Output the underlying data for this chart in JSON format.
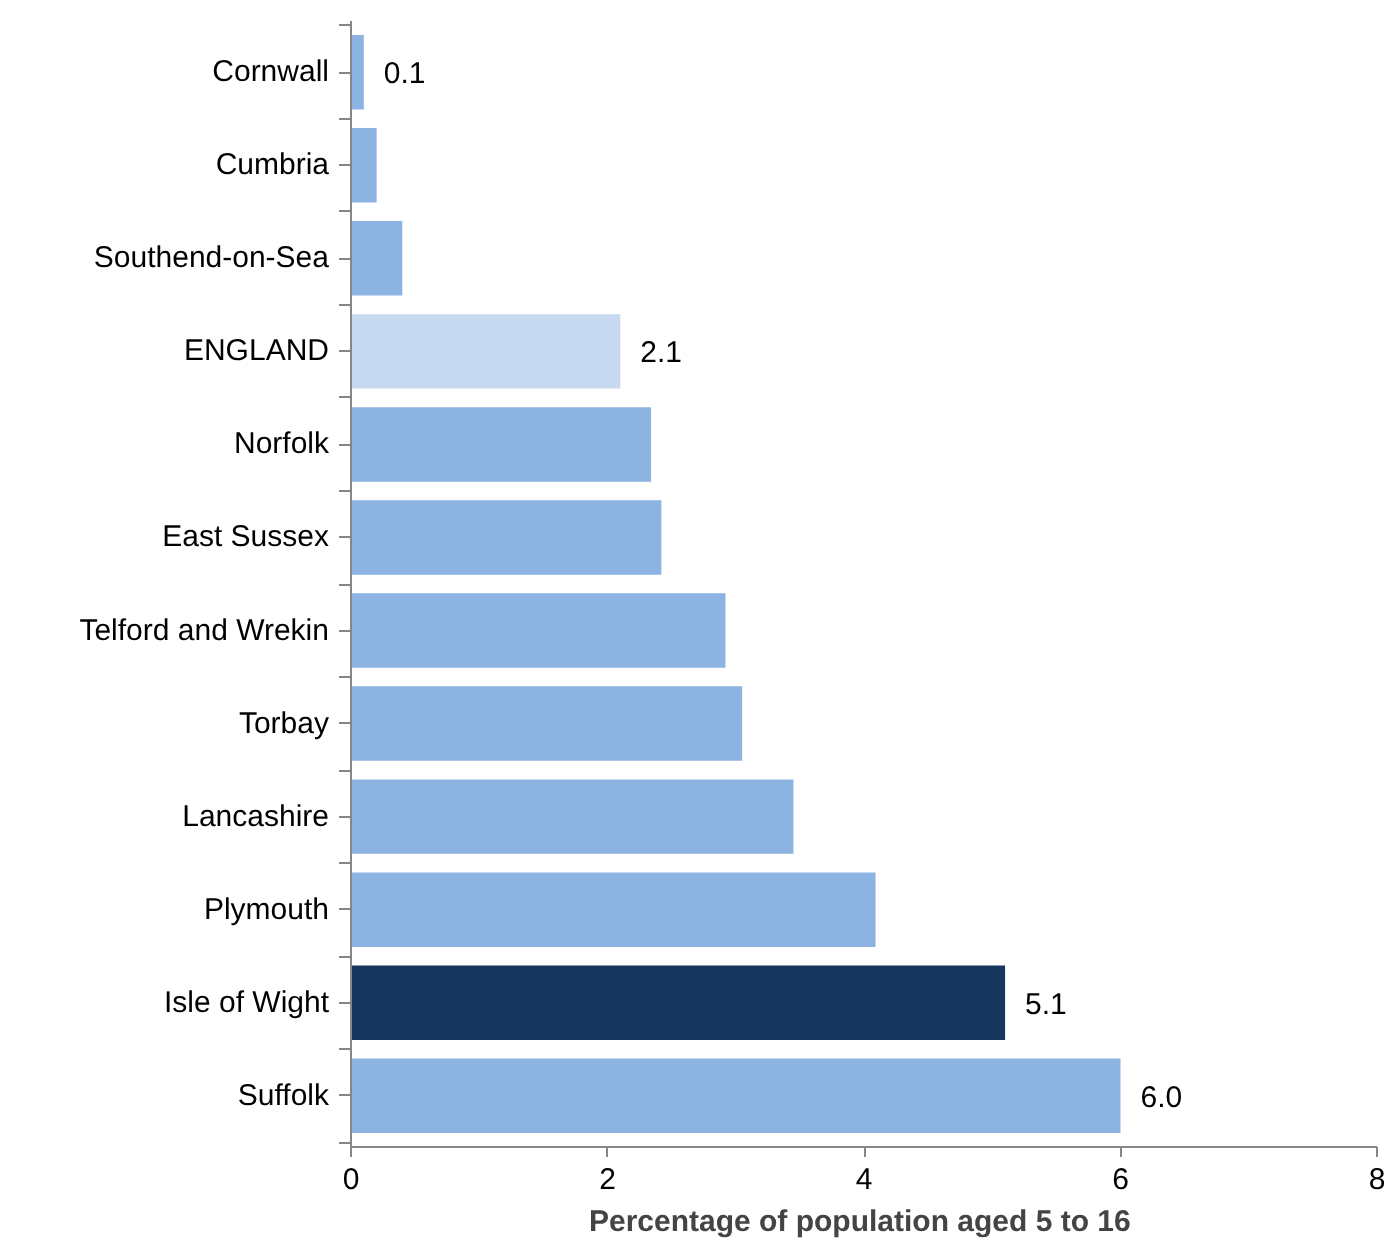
{
  "chart_data": {
    "type": "bar",
    "orientation": "horizontal",
    "xlabel": "Percentage of population  aged 5 to 16",
    "categories": [
      "Cornwall",
      "Cumbria",
      "Southend-on-Sea",
      "ENGLAND",
      "Norfolk",
      "East Sussex",
      "Telford and Wrekin",
      "Torbay",
      "Lancashire",
      "Plymouth",
      "Isle of Wight",
      "Suffolk"
    ],
    "values": [
      0.1,
      0.2,
      0.4,
      2.1,
      2.34,
      2.42,
      2.92,
      3.05,
      3.45,
      4.09,
      5.1,
      6.0
    ],
    "value_labels": [
      "0.1",
      null,
      null,
      "2.1",
      null,
      null,
      null,
      null,
      null,
      null,
      "5.1",
      "6.0"
    ],
    "colors": [
      "#8db3e2",
      "#8db3e2",
      "#8db3e2",
      "#c6d9f1",
      "#8db3e2",
      "#8db3e2",
      "#8db3e2",
      "#8db3e2",
      "#8db3e2",
      "#8db3e2",
      "#17375e",
      "#8db3e2"
    ],
    "xlim": [
      0,
      8
    ],
    "xticks": [
      0,
      2,
      4,
      6,
      8
    ],
    "grid": false
  }
}
